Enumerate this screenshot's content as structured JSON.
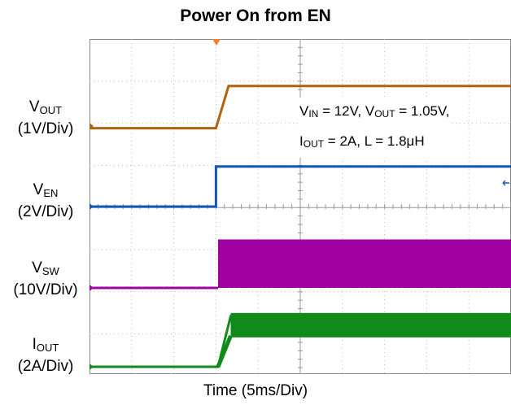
{
  "chart_data": {
    "type": "line",
    "title": "Power On from EN",
    "xlabel": "Time (5ms/Div)",
    "x_divisions": 10,
    "grid": true,
    "annotation": {
      "line1": [
        "V",
        "IN",
        " = 12V, V",
        "OUT",
        " = 1.05V,"
      ],
      "line2": [
        "I",
        "OUT",
        " = 2A, L = 1.8μH"
      ]
    },
    "series": [
      {
        "name_main": "V",
        "name_sub": "OUT",
        "scale": "(1V/Div)",
        "color": "#b0620f",
        "x_div": [
          0,
          3.0,
          3.3,
          10
        ],
        "level_div": [
          -0.05,
          -0.05,
          0.95,
          0.95
        ]
      },
      {
        "name_main": "V",
        "name_sub": "EN",
        "scale": "(2V/Div)",
        "color": "#1058b8",
        "x_div": [
          0,
          3.0,
          3.0,
          10
        ],
        "level_div": [
          0,
          0,
          0.95,
          0.95
        ]
      },
      {
        "name_main": "V",
        "name_sub": "SW",
        "scale": "(10V/Div)",
        "color": "#a000a0",
        "x_div": [
          0,
          3.05,
          3.05,
          10
        ],
        "level_div": [
          0,
          0,
          1.15,
          1.15
        ],
        "switching_after_div": 3.05
      },
      {
        "name_main": "I",
        "name_sub": "OUT",
        "scale": "(2A/Div)",
        "color": "#108a18",
        "x_div": [
          0,
          3.05,
          3.35,
          10
        ],
        "level_div": [
          0,
          0,
          1.2,
          1.2
        ],
        "ripple_after_div": 3.35
      }
    ]
  }
}
